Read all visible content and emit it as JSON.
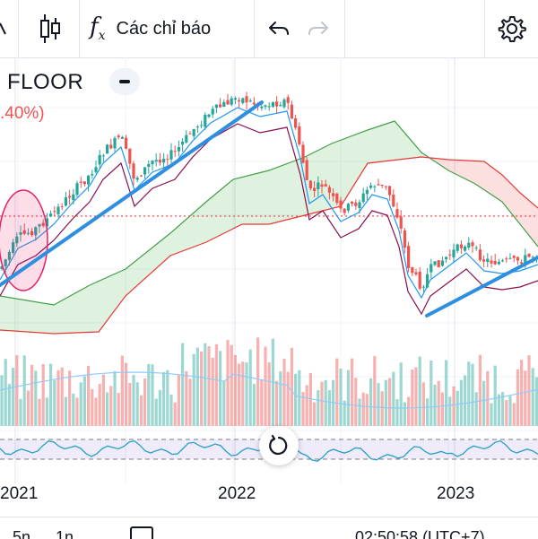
{
  "toolbar": {
    "indicators_label": "Các chỉ báo",
    "fx_label": "f",
    "fx_sub": "x"
  },
  "legend": {
    "symbol": "FLOOR",
    "change": ".40%)"
  },
  "xaxis": {
    "labels": [
      "2021",
      "2022",
      "2023"
    ]
  },
  "bottom_bar": {
    "ranges": [
      "5n",
      "1n"
    ],
    "clock": "02:50:58 (UTC+7)"
  },
  "colors": {
    "up": "#26a69a",
    "down": "#ef5350",
    "trendline": "#2e8fe0",
    "cloud_bull": "#4caf50",
    "cloud_bear": "#ef5350",
    "tenkan": "#2196f3",
    "kijun": "#880e4f",
    "highlight": "#e91e63"
  },
  "icons": [
    "candles-icon",
    "fx-icon",
    "undo-icon",
    "redo-icon",
    "gear-icon",
    "collapse-icon",
    "reset-icon",
    "calendar-icon"
  ]
}
